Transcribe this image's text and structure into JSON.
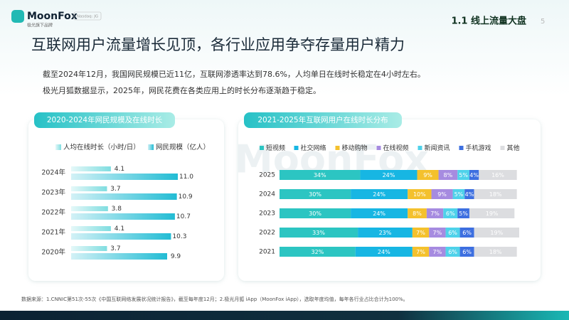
{
  "header": {
    "logo": "MoonFox",
    "badge": "Nasdaq: JG",
    "tagline": "极光旗下品牌",
    "section": "1.1 线上流量大盘",
    "page": "5"
  },
  "title": "互联网用户流量增长见顶，各行业应用争夺存量用户精力",
  "paragraphs": [
    "截至2024年12月，我国网民规模已近11亿，互联网渗透率达到78.6%，人均单日在线时长稳定在4小时左右。",
    "极光月狐数据显示，2025年，网民花费在各类应用上的时长分布逐渐趋于稳定。"
  ],
  "watermark": "MoonFox",
  "source": "数据来源：1.CNNIC第51次-55次《中国互联网络发展状况统计报告》，截至每年度12月；2.极光月狐 iApp（MoonFox iApp），选取年度均值，每年各行业占比合计为100%。",
  "chart_data": [
    {
      "type": "bar",
      "orientation": "horizontal",
      "title": "2020-2024年网民规模及在线时长",
      "categories": [
        "2024年",
        "2023年",
        "2022年",
        "2021年",
        "2020年"
      ],
      "series": [
        {
          "name": "人均在线时长（小时/日）",
          "color": "#7fdde0",
          "values": [
            4.1,
            3.7,
            3.8,
            4.1,
            3.7
          ]
        },
        {
          "name": "网民规模（亿人）",
          "color": "#22bcd4",
          "values": [
            11,
            10.9,
            10.7,
            10.3,
            9.9
          ],
          "value_labels": [
            "11.0",
            "10.9",
            "10.7",
            "10.3",
            "9.9"
          ]
        }
      ]
    },
    {
      "type": "stacked_bar",
      "orientation": "horizontal",
      "title": "2021-2025年互联网用户在线时长分布",
      "categories": [
        "2025",
        "2024",
        "2023",
        "2022",
        "2021"
      ],
      "series": [
        {
          "name": "短视频",
          "color": "#2cc5c2",
          "values": [
            34,
            30,
            30,
            33,
            32
          ],
          "value_labels": [
            "34%",
            "30%",
            "30%",
            "33%",
            "32%"
          ]
        },
        {
          "name": "社交网络",
          "color": "#17b6e3",
          "values": [
            24,
            24,
            24,
            23,
            24
          ],
          "value_labels": [
            "24%",
            "24%",
            "24%",
            "23%",
            "24%"
          ]
        },
        {
          "name": "移动购物",
          "color": "#f4c12d",
          "values": [
            9,
            10,
            8,
            7,
            7
          ],
          "value_labels": [
            "9%",
            "10%",
            "8%",
            "7%",
            "7%"
          ]
        },
        {
          "name": "在线视频",
          "color": "#a68be0",
          "values": [
            8,
            9,
            7,
            7,
            7
          ],
          "value_labels": [
            "8%",
            "9%",
            "7%",
            "7%",
            "7%"
          ]
        },
        {
          "name": "新闻资讯",
          "color": "#4fd2ea",
          "values": [
            5,
            5,
            6,
            6,
            6
          ],
          "value_labels": [
            "5%",
            "5%",
            "6%",
            "6%",
            "6%"
          ]
        },
        {
          "name": "手机游戏",
          "color": "#3d6fe0",
          "values": [
            4,
            4,
            5,
            6,
            6
          ],
          "value_labels": [
            "4%",
            "4%",
            "5%",
            "6%",
            "6%"
          ]
        },
        {
          "name": "其他",
          "color": "#dcdde0",
          "values": [
            16,
            18,
            19,
            19,
            18
          ],
          "value_labels": [
            "16%",
            "18%",
            "19%",
            "19%",
            "18%"
          ]
        }
      ]
    }
  ]
}
